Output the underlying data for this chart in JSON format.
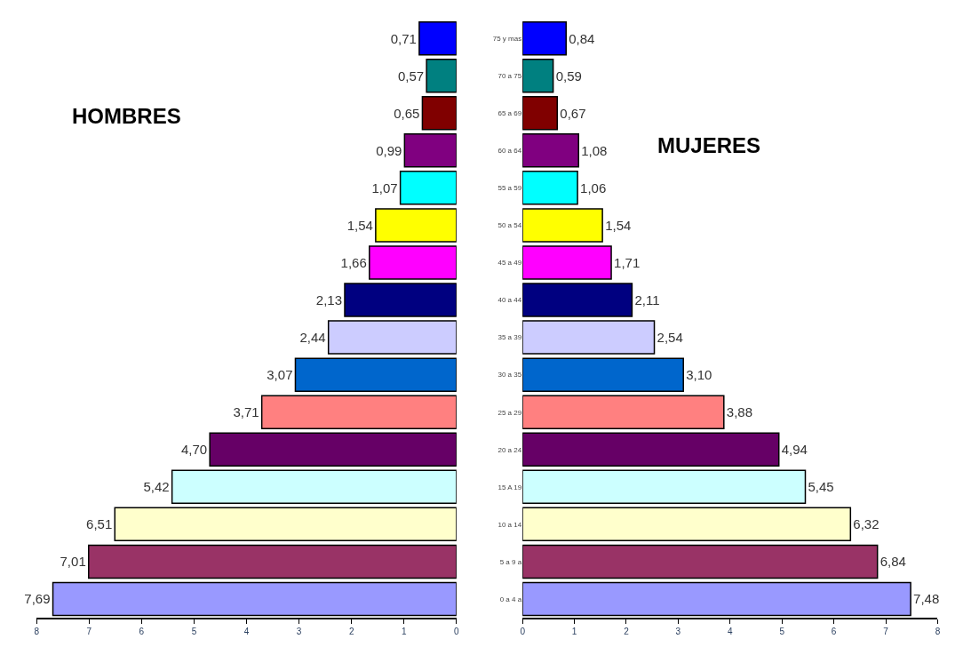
{
  "chart_data": [
    {
      "type": "bar",
      "title": "HOMBRES",
      "orientation": "horizontal",
      "tick_labels": "x",
      "categories": [
        null,
        null,
        null,
        null,
        null,
        null,
        null,
        null,
        null,
        null,
        null,
        null,
        null,
        null,
        null,
        null
      ],
      "values": [
        0.71,
        0.57,
        0.65,
        0.99,
        1.07,
        1.54,
        1.66,
        2.13,
        2.44,
        3.07,
        3.71,
        4.7,
        5.42,
        6.51,
        7.01,
        7.69
      ],
      "value_labels": [
        "0,71",
        "0,57",
        "0,65",
        "0,99",
        "1,07",
        "1,54",
        "1,66",
        "2,13",
        "2,44",
        "3,07",
        "3,71",
        "4,70",
        "5,42",
        "6,51",
        "7,01",
        "7,69"
      ],
      "colors": [
        "#0000ff",
        "#008080",
        "#800000",
        "#800080",
        "#00ffff",
        "#ffff00",
        "#ff00ff",
        "#000080",
        "#ccccff",
        "#0066cc",
        "#ff8080",
        "#660066",
        "#ccffff",
        "#ffffcc",
        "#993366",
        "#9999ff"
      ],
      "xlim": [
        8,
        0
      ],
      "xticks": [
        8,
        7,
        6,
        5,
        4,
        3,
        2,
        1,
        0
      ]
    },
    {
      "type": "bar",
      "title": "MUJERES",
      "orientation": "horizontal",
      "categories": [
        "75 y mas",
        "70 a 75",
        "65 a 69",
        "60 a 64",
        "55 a 59",
        "50 a 54",
        "45 a 49",
        "40 a 44",
        "35 a 39",
        "30 a 35",
        "25 a 29",
        "20 a 24",
        "15 A 19",
        "10 a 14",
        "5 a 9 a",
        "0 a 4 a"
      ],
      "values": [
        0.84,
        0.59,
        0.67,
        1.08,
        1.06,
        1.54,
        1.71,
        2.11,
        2.54,
        3.1,
        3.88,
        4.94,
        5.45,
        6.32,
        6.84,
        7.48
      ],
      "value_labels": [
        "0,84",
        "0,59",
        "0,67",
        "1,08",
        "1,06",
        "1,54",
        "1,71",
        "2,11",
        "2,54",
        "3,10",
        "3,88",
        "4,94",
        "5,45",
        "6,32",
        "6,84",
        "7,48"
      ],
      "colors": [
        "#0000ff",
        "#008080",
        "#800000",
        "#800080",
        "#00ffff",
        "#ffff00",
        "#ff00ff",
        "#000080",
        "#ccccff",
        "#0066cc",
        "#ff8080",
        "#660066",
        "#ccffff",
        "#ffffcc",
        "#993366",
        "#9999ff"
      ],
      "xlim": [
        0,
        8
      ],
      "xticks": [
        0,
        1,
        2,
        3,
        4,
        5,
        6,
        7,
        8
      ]
    }
  ]
}
